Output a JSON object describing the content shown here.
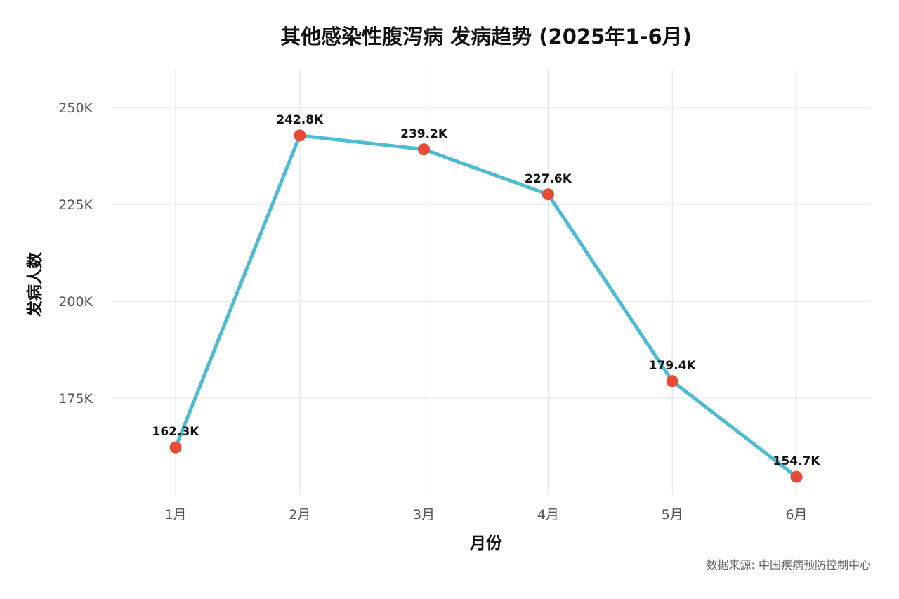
{
  "chart_data": {
    "type": "line",
    "title": "其他感染性腹泻病 发病趋势 (2025年1-6月)",
    "xlabel": "月份",
    "ylabel": "发病人数",
    "categories": [
      "1月",
      "2月",
      "3月",
      "4月",
      "5月",
      "6月"
    ],
    "series": [
      {
        "values": [
          162300,
          242800,
          239200,
          227600,
          179400,
          154700
        ],
        "labels": [
          "162.3K",
          "242.8K",
          "239.2K",
          "227.6K",
          "179.4K",
          "154.7K"
        ]
      }
    ],
    "y_ticks": [
      175000,
      200000,
      225000,
      250000
    ],
    "y_tick_labels": [
      "175K",
      "200K",
      "225K",
      "250K"
    ],
    "ylim": [
      150000,
      260000
    ],
    "grid": true,
    "legend": "none",
    "line_color": "#4EBBD5",
    "marker_color": "#E64B35",
    "caption": "数据来源: 中国疾病预防控制中心"
  }
}
